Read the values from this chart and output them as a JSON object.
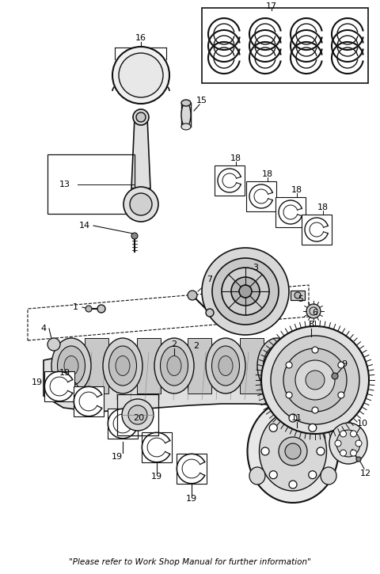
{
  "footer": "\"Please refer to Work Shop Manual for further information\"",
  "bg_color": "#ffffff",
  "lc": "#111111",
  "figsize": [
    4.8,
    7.25
  ],
  "dpi": 100
}
